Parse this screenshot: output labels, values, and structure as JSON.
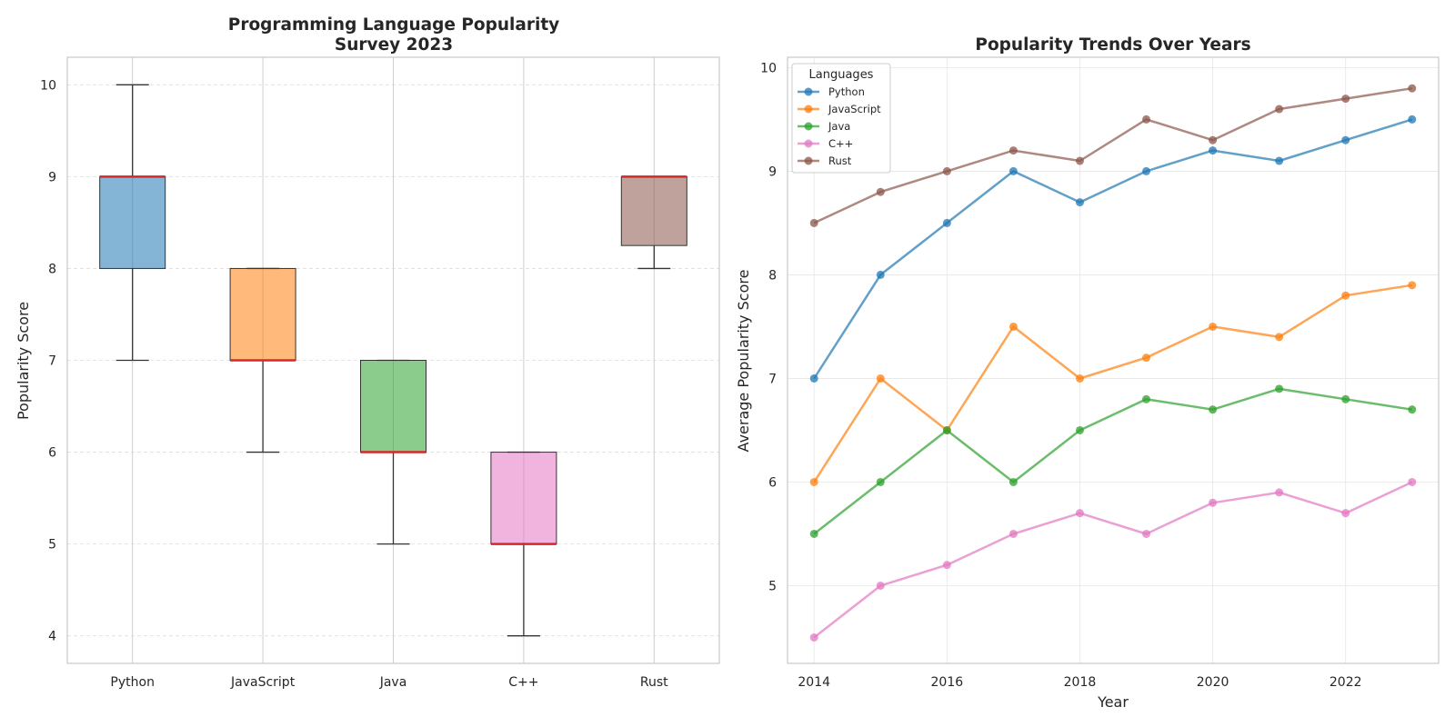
{
  "colors": {
    "python": "#1f77b4",
    "javascript": "#ff7f0e",
    "java": "#2ca02c",
    "cpp": "#e377c2",
    "rust": "#8c564b",
    "median": "#d62728",
    "grid": "#dddddd",
    "spine": "#cccccc"
  },
  "chart_data": [
    {
      "type": "box",
      "title": "Programming Language Popularity\nSurvey 2023",
      "title_lines": [
        "Programming Language Popularity",
        "Survey 2023"
      ],
      "ylabel": "Popularity Score",
      "xlabel": "",
      "ylim": [
        3.7,
        10.3
      ],
      "yticks": [
        4,
        5,
        6,
        7,
        8,
        9,
        10
      ],
      "grid": "y-dashed",
      "categories": [
        "Python",
        "JavaScript",
        "Java",
        "C++",
        "Rust"
      ],
      "boxes": [
        {
          "name": "Python",
          "color": "python",
          "whisker_low": 7,
          "q1": 8,
          "median": 9,
          "q3": 9,
          "whisker_high": 10
        },
        {
          "name": "JavaScript",
          "color": "javascript",
          "whisker_low": 6,
          "q1": 7,
          "median": 7,
          "q3": 8,
          "whisker_high": 8
        },
        {
          "name": "Java",
          "color": "java",
          "whisker_low": 5,
          "q1": 6,
          "median": 6,
          "q3": 7,
          "whisker_high": 7
        },
        {
          "name": "C++",
          "color": "cpp",
          "whisker_low": 4,
          "q1": 5,
          "median": 5,
          "q3": 6,
          "whisker_high": 6
        },
        {
          "name": "Rust",
          "color": "rust",
          "whisker_low": 8,
          "q1": 8.25,
          "median": 9,
          "q3": 9,
          "whisker_high": 9
        }
      ]
    },
    {
      "type": "line",
      "title": "Popularity Trends Over Years",
      "xlabel": "Year",
      "ylabel": "Average Popularity Score",
      "xlim": [
        2013.6,
        2023.4
      ],
      "ylim": [
        4.25,
        10.1
      ],
      "xticks": [
        2014,
        2016,
        2018,
        2020,
        2022
      ],
      "yticks": [
        5,
        6,
        7,
        8,
        9,
        10
      ],
      "grid": "both",
      "legend": {
        "title": "Languages",
        "placement": "top-left"
      },
      "x": [
        2014,
        2015,
        2016,
        2017,
        2018,
        2019,
        2020,
        2021,
        2022,
        2023
      ],
      "series": [
        {
          "name": "Python",
          "color": "python",
          "values": [
            7.0,
            8.0,
            8.5,
            9.0,
            8.7,
            9.0,
            9.2,
            9.1,
            9.3,
            9.5
          ]
        },
        {
          "name": "JavaScript",
          "color": "javascript",
          "values": [
            6.0,
            7.0,
            6.5,
            7.5,
            7.0,
            7.2,
            7.5,
            7.4,
            7.8,
            7.9
          ]
        },
        {
          "name": "Java",
          "color": "java",
          "values": [
            5.5,
            6.0,
            6.5,
            6.0,
            6.5,
            6.8,
            6.7,
            6.9,
            6.8,
            6.7
          ]
        },
        {
          "name": "C++",
          "color": "cpp",
          "values": [
            4.5,
            5.0,
            5.2,
            5.5,
            5.7,
            5.5,
            5.8,
            5.9,
            5.7,
            6.0
          ]
        },
        {
          "name": "Rust",
          "color": "rust",
          "values": [
            8.5,
            8.8,
            9.0,
            9.2,
            9.1,
            9.5,
            9.3,
            9.6,
            9.7,
            9.8
          ]
        }
      ]
    }
  ]
}
